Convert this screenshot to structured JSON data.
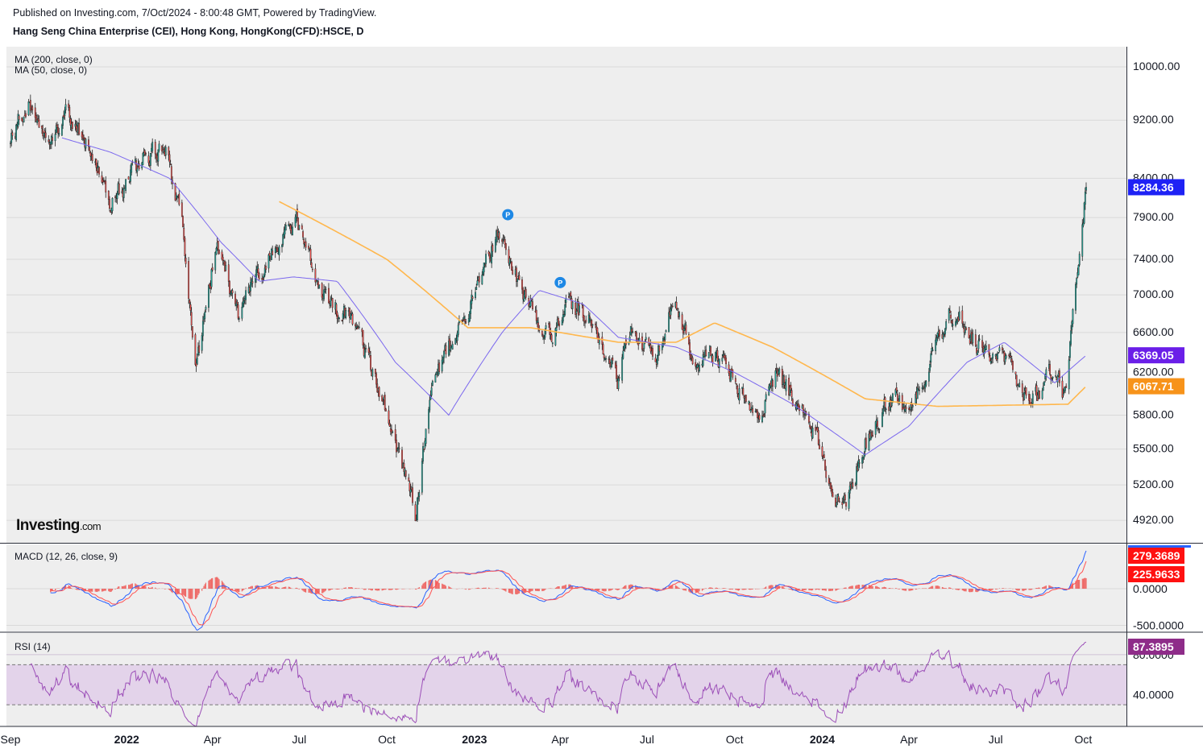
{
  "header": {
    "published": "Published on Investing.com, 7/Oct/2024 - 8:00:48 GMT, Powered by TradingView.",
    "symbol": "Hang Seng China Enterprise (CEI), Hong Kong, HongKong(CFD):HSCE, D"
  },
  "legend": {
    "ma200": "MA (200, close, 0)",
    "ma50": "MA (50, close, 0)",
    "macd": "MACD (12, 26, close, 9)",
    "rsi": "RSI (14)"
  },
  "logo": {
    "main": "Investing",
    "suffix": ".com"
  },
  "colors": {
    "up": "#26a69a",
    "down": "#ef5350",
    "ma50": "#7b68ee",
    "ma200": "#ffb74d",
    "macd": "#2962ff",
    "signal": "#ff5252",
    "rsi": "#9c4fb8",
    "rsi_band": "#e3d3ea",
    "last_price_bg": "#1e22f5",
    "ma50_bg": "#6a1fe8",
    "ma200_bg": "#f7931a",
    "macd_bg": "#ff1111",
    "rsi_bg": "#8e2c89",
    "panel_bg": "#eeeeee"
  },
  "chart_data": [
    {
      "type": "candlestick",
      "title": "Hang Seng China Enterprise (CEI), Hong Kong, HongKong(CFD):HSCE, D",
      "x_ticks": [
        "Sep",
        "2022",
        "Apr",
        "Jul",
        "Oct",
        "2023",
        "Apr",
        "Jul",
        "Oct",
        "2024",
        "Apr",
        "Jul",
        "Oct"
      ],
      "y_ticks": [
        "10000.00",
        "9200.00",
        "8400.00",
        "7900.00",
        "7400.00",
        "7000.00",
        "6600.00",
        "6200.00",
        "5800.00",
        "5500.00",
        "5200.00",
        "4920.00"
      ],
      "y_tick_values": [
        10000,
        9200,
        8400,
        7900,
        7400,
        7000,
        6600,
        6200,
        5800,
        5500,
        5200,
        4920
      ],
      "ylim": [
        4750,
        10320
      ],
      "y_scale": "log",
      "anchors": [
        {
          "date": "2021-09-01",
          "close": 8880
        },
        {
          "date": "2021-09-20",
          "close": 9500
        },
        {
          "date": "2021-10-10",
          "close": 8700
        },
        {
          "date": "2021-10-28",
          "close": 9350
        },
        {
          "date": "2021-11-20",
          "close": 8950
        },
        {
          "date": "2021-12-15",
          "close": 8100
        },
        {
          "date": "2022-01-20",
          "close": 8700
        },
        {
          "date": "2022-02-12",
          "close": 8750
        },
        {
          "date": "2022-03-01",
          "close": 7800
        },
        {
          "date": "2022-03-15",
          "close": 6200
        },
        {
          "date": "2022-04-05",
          "close": 7600
        },
        {
          "date": "2022-04-28",
          "close": 6800
        },
        {
          "date": "2022-06-01",
          "close": 7500
        },
        {
          "date": "2022-06-28",
          "close": 7850
        },
        {
          "date": "2022-07-25",
          "close": 7000
        },
        {
          "date": "2022-08-20",
          "close": 6750
        },
        {
          "date": "2022-09-25",
          "close": 6000
        },
        {
          "date": "2022-10-31",
          "close": 4950
        },
        {
          "date": "2022-11-20",
          "close": 6200
        },
        {
          "date": "2022-12-20",
          "close": 6700
        },
        {
          "date": "2023-01-27",
          "close": 7750
        },
        {
          "date": "2023-02-25",
          "close": 6900
        },
        {
          "date": "2023-03-20",
          "close": 6550
        },
        {
          "date": "2023-04-12",
          "close": 6900
        },
        {
          "date": "2023-05-10",
          "close": 6650
        },
        {
          "date": "2023-05-31",
          "close": 6100
        },
        {
          "date": "2023-06-16",
          "close": 6700
        },
        {
          "date": "2023-07-10",
          "close": 6300
        },
        {
          "date": "2023-07-31",
          "close": 6950
        },
        {
          "date": "2023-08-20",
          "close": 6300
        },
        {
          "date": "2023-09-10",
          "close": 6350
        },
        {
          "date": "2023-10-25",
          "close": 5850
        },
        {
          "date": "2023-11-15",
          "close": 6200
        },
        {
          "date": "2023-12-20",
          "close": 5700
        },
        {
          "date": "2024-01-22",
          "close": 5000
        },
        {
          "date": "2024-02-15",
          "close": 5550
        },
        {
          "date": "2024-03-10",
          "close": 5950
        },
        {
          "date": "2024-04-01",
          "close": 5850
        },
        {
          "date": "2024-05-20",
          "close": 6900
        },
        {
          "date": "2024-06-10",
          "close": 6500
        },
        {
          "date": "2024-07-10",
          "close": 6350
        },
        {
          "date": "2024-08-05",
          "close": 5900
        },
        {
          "date": "2024-08-30",
          "close": 6200
        },
        {
          "date": "2024-09-12",
          "close": 5950
        },
        {
          "date": "2024-09-30",
          "close": 7850
        },
        {
          "date": "2024-10-04",
          "close": 8284
        }
      ],
      "ma200_anchors": [
        {
          "date": "2022-06-10",
          "value": 8100
        },
        {
          "date": "2022-10-01",
          "value": 7400
        },
        {
          "date": "2022-12-25",
          "value": 6650
        },
        {
          "date": "2023-03-01",
          "value": 6650
        },
        {
          "date": "2023-06-01",
          "value": 6500
        },
        {
          "date": "2023-08-01",
          "value": 6500
        },
        {
          "date": "2023-09-10",
          "value": 6700
        },
        {
          "date": "2023-11-10",
          "value": 6450
        },
        {
          "date": "2024-02-15",
          "value": 5950
        },
        {
          "date": "2024-05-01",
          "value": 5880
        },
        {
          "date": "2024-09-15",
          "value": 5900
        },
        {
          "date": "2024-10-04",
          "value": 6068
        }
      ],
      "ma50_anchors": [
        {
          "date": "2021-10-25",
          "value": 8950
        },
        {
          "date": "2021-12-15",
          "value": 8750
        },
        {
          "date": "2022-02-15",
          "value": 8400
        },
        {
          "date": "2022-04-10",
          "value": 7600
        },
        {
          "date": "2022-05-20",
          "value": 7150
        },
        {
          "date": "2022-06-25",
          "value": 7200
        },
        {
          "date": "2022-08-10",
          "value": 7150
        },
        {
          "date": "2022-10-10",
          "value": 6300
        },
        {
          "date": "2022-12-05",
          "value": 5800
        },
        {
          "date": "2023-01-30",
          "value": 6600
        },
        {
          "date": "2023-03-10",
          "value": 7050
        },
        {
          "date": "2023-04-25",
          "value": 6900
        },
        {
          "date": "2023-06-01",
          "value": 6550
        },
        {
          "date": "2023-08-01",
          "value": 6450
        },
        {
          "date": "2023-10-01",
          "value": 6200
        },
        {
          "date": "2023-12-01",
          "value": 5900
        },
        {
          "date": "2024-02-15",
          "value": 5450
        },
        {
          "date": "2024-04-01",
          "value": 5700
        },
        {
          "date": "2024-06-01",
          "value": 6300
        },
        {
          "date": "2024-07-10",
          "value": 6500
        },
        {
          "date": "2024-09-01",
          "value": 6100
        },
        {
          "date": "2024-10-04",
          "value": 6369
        }
      ],
      "labels": {
        "last_price": "8284.36",
        "ma50": "6369.05",
        "ma200": "6067.71"
      },
      "markers": [
        {
          "date": "2023-02-05",
          "label": "P"
        },
        {
          "date": "2023-04-01",
          "label": "P"
        }
      ]
    },
    {
      "type": "line",
      "title": "MACD (12, 26, close, 9)",
      "y_ticks": [
        "0.0000",
        "-500.0000"
      ],
      "y_tick_values": [
        0,
        -500
      ],
      "ylim": [
        -560,
        560
      ],
      "last_values": {
        "macd": "279.3689",
        "signal": "225.9633"
      }
    },
    {
      "type": "line",
      "title": "RSI (14)",
      "y_ticks": [
        "80.0000",
        "40.0000"
      ],
      "y_tick_values": [
        80,
        40
      ],
      "ylim": [
        10,
        100
      ],
      "band": [
        70,
        30
      ],
      "last_value": "87.3895"
    }
  ]
}
